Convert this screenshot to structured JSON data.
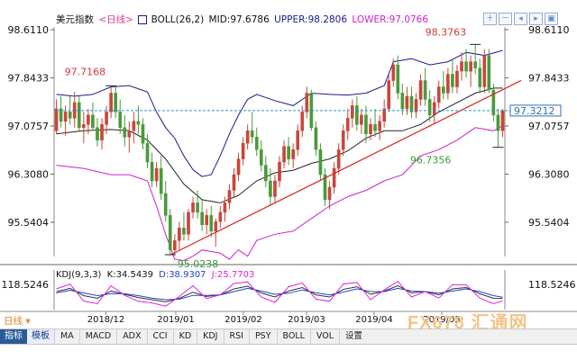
{
  "header": {
    "title": "美元指数",
    "period_tag": "<日线>",
    "indicator": "BOLL(26,2)",
    "mid_label": "MID:97.6786",
    "upper_label": "UPPER:98.2806",
    "lower_label": "LOWER:97.0766"
  },
  "kdj_header": {
    "name": "KDJ(9,3,3)",
    "k_label": "K:34.5439",
    "d_label": "D:38.9307",
    "j_label": "J:25.7703"
  },
  "period_label": "日线",
  "toolbar": {
    "tabs": [
      "指标",
      "模板"
    ],
    "items": [
      "MA",
      "MACD",
      "ADX",
      "CCI",
      "KD",
      "KDJ",
      "RSI",
      "PSY",
      "BOLL",
      "VOL",
      "设置"
    ]
  },
  "watermark": "FX678 汇通网",
  "colors": {
    "up": "#c8463c",
    "down": "#4a9a3a",
    "mid": "#222222",
    "upper": "#1a1a8a",
    "lower": "#cc22cc",
    "trend": "#e02020",
    "price_line": "#3090c0",
    "price_tag": "#3070b0",
    "kdj_k": "#333333",
    "kdj_d": "#2244cc",
    "kdj_j": "#dd22dd"
  },
  "chart_data": {
    "type": "candlestick",
    "title": "美元指数 日线",
    "y_ticks": [
      98.611,
      97.8433,
      97.0757,
      96.308,
      95.5404
    ],
    "y_tick_labels": [
      "98.6110",
      "97.8433",
      "97.0757",
      "96.3080",
      "95.5404"
    ],
    "kdj_tick_label": "118.5246",
    "x_labels": [
      "2018/12",
      "2019/01",
      "2019/02",
      "2019/03",
      "2019/04",
      "2019/05"
    ],
    "current_price": 97.3212,
    "current_price_label": "97.3212",
    "annotations": [
      {
        "text": "97.7168",
        "value": 97.7168,
        "kind": "high"
      },
      {
        "text": "95.0238",
        "value": 95.0238,
        "kind": "low"
      },
      {
        "text": "98.3763",
        "value": 98.3763,
        "kind": "high"
      },
      {
        "text": "96.7356",
        "value": 96.7356,
        "kind": "low"
      }
    ],
    "candles": [
      [
        97.0,
        97.5,
        96.95,
        97.35
      ],
      [
        97.35,
        97.55,
        97.05,
        97.15
      ],
      [
        97.15,
        97.4,
        96.92,
        97.3
      ],
      [
        97.3,
        97.55,
        97.1,
        97.2
      ],
      [
        97.2,
        97.62,
        97.05,
        97.45
      ],
      [
        97.45,
        97.55,
        97.0,
        97.05
      ],
      [
        97.05,
        97.3,
        96.8,
        97.1
      ],
      [
        97.1,
        97.35,
        96.95,
        97.25
      ],
      [
        97.25,
        97.45,
        97.0,
        97.05
      ],
      [
        97.05,
        97.2,
        96.75,
        96.85
      ],
      [
        96.85,
        97.2,
        96.7,
        97.1
      ],
      [
        97.1,
        97.4,
        96.95,
        97.3
      ],
      [
        97.3,
        97.7,
        97.2,
        97.6
      ],
      [
        97.6,
        97.72,
        97.2,
        97.3
      ],
      [
        97.3,
        97.5,
        96.95,
        97.05
      ],
      [
        97.05,
        97.25,
        96.75,
        96.9
      ],
      [
        96.9,
        97.15,
        96.65,
        97.0
      ],
      [
        97.0,
        97.3,
        96.8,
        97.15
      ],
      [
        97.15,
        97.4,
        96.95,
        97.1
      ],
      [
        97.1,
        97.2,
        96.7,
        96.8
      ],
      [
        96.8,
        96.95,
        96.4,
        96.5
      ],
      [
        96.5,
        96.65,
        96.1,
        96.2
      ],
      [
        96.2,
        96.5,
        96.1,
        96.4
      ],
      [
        96.4,
        96.6,
        95.9,
        96.0
      ],
      [
        96.0,
        96.2,
        95.55,
        95.65
      ],
      [
        95.65,
        95.75,
        95.02,
        95.1
      ],
      [
        95.1,
        95.35,
        95.02,
        95.25
      ],
      [
        95.25,
        95.55,
        95.1,
        95.45
      ],
      [
        95.45,
        95.7,
        95.25,
        95.35
      ],
      [
        95.35,
        95.75,
        95.25,
        95.7
      ],
      [
        95.7,
        95.95,
        95.6,
        95.85
      ],
      [
        95.85,
        96.05,
        95.6,
        95.7
      ],
      [
        95.7,
        95.9,
        95.4,
        95.5
      ],
      [
        95.5,
        95.75,
        95.35,
        95.65
      ],
      [
        95.65,
        95.8,
        95.3,
        95.4
      ],
      [
        95.4,
        95.6,
        95.15,
        95.55
      ],
      [
        95.55,
        95.8,
        95.45,
        95.7
      ],
      [
        95.7,
        95.95,
        95.55,
        95.85
      ],
      [
        95.85,
        96.15,
        95.75,
        96.05
      ],
      [
        96.05,
        96.4,
        95.95,
        96.3
      ],
      [
        96.3,
        96.65,
        96.2,
        96.55
      ],
      [
        96.55,
        96.9,
        96.45,
        96.8
      ],
      [
        96.8,
        97.1,
        96.7,
        97.0
      ],
      [
        97.0,
        97.3,
        96.8,
        96.9
      ],
      [
        96.9,
        97.05,
        96.6,
        96.7
      ],
      [
        96.7,
        96.85,
        96.35,
        96.45
      ],
      [
        96.45,
        96.6,
        96.1,
        96.2
      ],
      [
        96.2,
        96.4,
        95.8,
        95.95
      ],
      [
        95.95,
        96.3,
        95.85,
        96.2
      ],
      [
        96.2,
        96.6,
        96.1,
        96.5
      ],
      [
        96.5,
        96.85,
        96.4,
        96.75
      ],
      [
        96.75,
        96.9,
        96.45,
        96.55
      ],
      [
        96.55,
        96.8,
        96.4,
        96.7
      ],
      [
        96.7,
        97.1,
        96.6,
        97.0
      ],
      [
        97.0,
        97.4,
        96.9,
        97.3
      ],
      [
        97.3,
        97.7,
        97.2,
        97.6
      ],
      [
        97.6,
        97.65,
        97.0,
        97.05
      ],
      [
        97.05,
        97.15,
        96.6,
        96.7
      ],
      [
        96.7,
        96.8,
        96.2,
        96.3
      ],
      [
        96.3,
        96.4,
        95.8,
        95.9
      ],
      [
        95.9,
        96.2,
        95.75,
        96.1
      ],
      [
        96.1,
        96.5,
        96.0,
        96.4
      ],
      [
        96.4,
        96.8,
        96.3,
        96.7
      ],
      [
        96.7,
        97.1,
        96.6,
        97.0
      ],
      [
        97.0,
        97.35,
        96.85,
        97.2
      ],
      [
        97.2,
        97.5,
        97.05,
        97.4
      ],
      [
        97.4,
        97.55,
        97.0,
        97.1
      ],
      [
        97.1,
        97.35,
        96.95,
        97.25
      ],
      [
        97.25,
        97.4,
        96.8,
        96.95
      ],
      [
        96.95,
        97.2,
        96.85,
        97.1
      ],
      [
        97.1,
        97.35,
        96.9,
        97.0
      ],
      [
        97.0,
        97.25,
        96.85,
        97.15
      ],
      [
        97.15,
        97.5,
        97.05,
        97.35
      ],
      [
        97.35,
        97.9,
        97.3,
        97.8
      ],
      [
        97.8,
        98.15,
        97.7,
        98.05
      ],
      [
        98.05,
        98.2,
        97.5,
        97.6
      ],
      [
        97.6,
        97.75,
        97.25,
        97.35
      ],
      [
        97.35,
        97.7,
        97.25,
        97.55
      ],
      [
        97.55,
        97.7,
        97.2,
        97.3
      ],
      [
        97.3,
        97.6,
        97.2,
        97.5
      ],
      [
        97.5,
        97.9,
        97.4,
        97.8
      ],
      [
        97.8,
        98.0,
        97.4,
        97.5
      ],
      [
        97.5,
        97.65,
        97.15,
        97.25
      ],
      [
        97.25,
        97.55,
        97.1,
        97.45
      ],
      [
        97.45,
        97.8,
        97.35,
        97.7
      ],
      [
        97.7,
        97.95,
        97.5,
        97.6
      ],
      [
        97.6,
        98.0,
        97.5,
        97.9
      ],
      [
        97.9,
        98.15,
        97.6,
        97.7
      ],
      [
        97.7,
        98.05,
        97.6,
        97.95
      ],
      [
        97.95,
        98.25,
        97.8,
        98.1
      ],
      [
        98.1,
        98.3,
        97.85,
        97.95
      ],
      [
        97.95,
        98.2,
        97.7,
        98.1
      ],
      [
        98.1,
        98.38,
        97.9,
        98.0
      ],
      [
        98.0,
        98.15,
        97.6,
        97.7
      ],
      [
        97.7,
        98.3,
        97.6,
        98.2
      ],
      [
        98.2,
        98.3,
        97.6,
        97.65
      ],
      [
        97.65,
        97.75,
        97.15,
        97.25
      ],
      [
        97.25,
        97.35,
        96.73,
        97.0
      ],
      [
        97.0,
        97.35,
        96.9,
        97.32
      ]
    ],
    "boll_mid": [
      [
        0,
        96.95
      ],
      [
        6,
        97.0
      ],
      [
        12,
        97.02
      ],
      [
        16,
        97.0
      ],
      [
        20,
        96.85
      ],
      [
        24,
        96.55
      ],
      [
        28,
        96.15
      ],
      [
        32,
        95.9
      ],
      [
        36,
        95.85
      ],
      [
        40,
        95.97
      ],
      [
        44,
        96.2
      ],
      [
        48,
        96.33
      ],
      [
        52,
        96.37
      ],
      [
        56,
        96.48
      ],
      [
        60,
        96.55
      ],
      [
        64,
        96.68
      ],
      [
        68,
        96.88
      ],
      [
        72,
        97.0
      ],
      [
        76,
        97.0
      ],
      [
        80,
        97.1
      ],
      [
        84,
        97.3
      ],
      [
        88,
        97.45
      ],
      [
        92,
        97.6
      ],
      [
        96,
        97.68
      ],
      [
        98,
        97.68
      ]
    ],
    "boll_upper": [
      [
        0,
        97.58
      ],
      [
        4,
        97.55
      ],
      [
        8,
        97.58
      ],
      [
        12,
        97.7
      ],
      [
        16,
        97.72
      ],
      [
        20,
        97.62
      ],
      [
        22,
        97.3
      ],
      [
        24,
        97.05
      ],
      [
        26,
        96.88
      ],
      [
        28,
        96.6
      ],
      [
        30,
        96.38
      ],
      [
        32,
        96.27
      ],
      [
        34,
        96.3
      ],
      [
        36,
        96.6
      ],
      [
        38,
        96.95
      ],
      [
        40,
        97.25
      ],
      [
        42,
        97.5
      ],
      [
        44,
        97.58
      ],
      [
        48,
        97.48
      ],
      [
        52,
        97.4
      ],
      [
        56,
        97.6
      ],
      [
        60,
        97.58
      ],
      [
        64,
        97.57
      ],
      [
        68,
        97.6
      ],
      [
        72,
        97.72
      ],
      [
        74,
        98.1
      ],
      [
        78,
        98.15
      ],
      [
        82,
        98.05
      ],
      [
        86,
        98.1
      ],
      [
        90,
        98.25
      ],
      [
        94,
        98.2
      ],
      [
        98,
        98.28
      ]
    ],
    "boll_lower": [
      [
        0,
        96.45
      ],
      [
        6,
        96.4
      ],
      [
        12,
        96.3
      ],
      [
        16,
        96.3
      ],
      [
        20,
        96.2
      ],
      [
        22,
        95.8
      ],
      [
        24,
        95.35
      ],
      [
        26,
        94.95
      ],
      [
        28,
        94.93
      ],
      [
        30,
        95.0
      ],
      [
        32,
        95.1
      ],
      [
        36,
        95.05
      ],
      [
        38,
        94.95
      ],
      [
        40,
        95.1
      ],
      [
        42,
        95.0
      ],
      [
        44,
        95.25
      ],
      [
        48,
        95.35
      ],
      [
        52,
        95.4
      ],
      [
        56,
        95.6
      ],
      [
        60,
        95.8
      ],
      [
        64,
        95.95
      ],
      [
        68,
        96.05
      ],
      [
        72,
        96.2
      ],
      [
        76,
        96.3
      ],
      [
        80,
        96.6
      ],
      [
        84,
        96.7
      ],
      [
        88,
        96.85
      ],
      [
        92,
        97.05
      ],
      [
        96,
        97.0
      ],
      [
        98,
        97.08
      ]
    ],
    "trendline": [
      [
        25,
        95.02
      ],
      [
        98,
        97.6
      ]
    ],
    "kdj": {
      "k": [
        [
          0,
          60
        ],
        [
          3,
          72
        ],
        [
          6,
          45
        ],
        [
          9,
          35
        ],
        [
          12,
          62
        ],
        [
          15,
          50
        ],
        [
          18,
          38
        ],
        [
          21,
          30
        ],
        [
          24,
          22
        ],
        [
          27,
          35
        ],
        [
          30,
          58
        ],
        [
          33,
          42
        ],
        [
          36,
          48
        ],
        [
          39,
          70
        ],
        [
          42,
          80
        ],
        [
          45,
          55
        ],
        [
          48,
          40
        ],
        [
          51,
          62
        ],
        [
          54,
          75
        ],
        [
          57,
          48
        ],
        [
          60,
          40
        ],
        [
          63,
          68
        ],
        [
          66,
          78
        ],
        [
          69,
          50
        ],
        [
          72,
          62
        ],
        [
          75,
          82
        ],
        [
          78,
          55
        ],
        [
          81,
          60
        ],
        [
          84,
          48
        ],
        [
          87,
          70
        ],
        [
          90,
          75
        ],
        [
          93,
          52
        ],
        [
          96,
          35
        ],
        [
          98,
          34.5
        ]
      ],
      "d": [
        [
          0,
          55
        ],
        [
          3,
          65
        ],
        [
          6,
          55
        ],
        [
          9,
          45
        ],
        [
          12,
          52
        ],
        [
          15,
          52
        ],
        [
          18,
          45
        ],
        [
          21,
          36
        ],
        [
          24,
          30
        ],
        [
          27,
          32
        ],
        [
          30,
          46
        ],
        [
          33,
          46
        ],
        [
          36,
          48
        ],
        [
          39,
          60
        ],
        [
          42,
          72
        ],
        [
          45,
          62
        ],
        [
          48,
          50
        ],
        [
          51,
          54
        ],
        [
          54,
          66
        ],
        [
          57,
          56
        ],
        [
          60,
          48
        ],
        [
          63,
          58
        ],
        [
          66,
          70
        ],
        [
          69,
          60
        ],
        [
          72,
          60
        ],
        [
          75,
          72
        ],
        [
          78,
          62
        ],
        [
          81,
          60
        ],
        [
          84,
          54
        ],
        [
          87,
          62
        ],
        [
          90,
          70
        ],
        [
          93,
          60
        ],
        [
          96,
          45
        ],
        [
          98,
          38.9
        ]
      ],
      "j": [
        [
          0,
          70
        ],
        [
          3,
          88
        ],
        [
          6,
          25
        ],
        [
          9,
          15
        ],
        [
          12,
          82
        ],
        [
          15,
          46
        ],
        [
          18,
          24
        ],
        [
          21,
          18
        ],
        [
          24,
          6
        ],
        [
          27,
          42
        ],
        [
          30,
          82
        ],
        [
          33,
          34
        ],
        [
          36,
          48
        ],
        [
          39,
          90
        ],
        [
          42,
          96
        ],
        [
          45,
          40
        ],
        [
          48,
          20
        ],
        [
          51,
          78
        ],
        [
          54,
          92
        ],
        [
          57,
          32
        ],
        [
          60,
          24
        ],
        [
          63,
          88
        ],
        [
          66,
          94
        ],
        [
          69,
          30
        ],
        [
          72,
          66
        ],
        [
          75,
          98
        ],
        [
          78,
          40
        ],
        [
          81,
          60
        ],
        [
          84,
          36
        ],
        [
          87,
          86
        ],
        [
          90,
          85
        ],
        [
          93,
          36
        ],
        [
          96,
          15
        ],
        [
          98,
          25.8
        ]
      ]
    }
  }
}
